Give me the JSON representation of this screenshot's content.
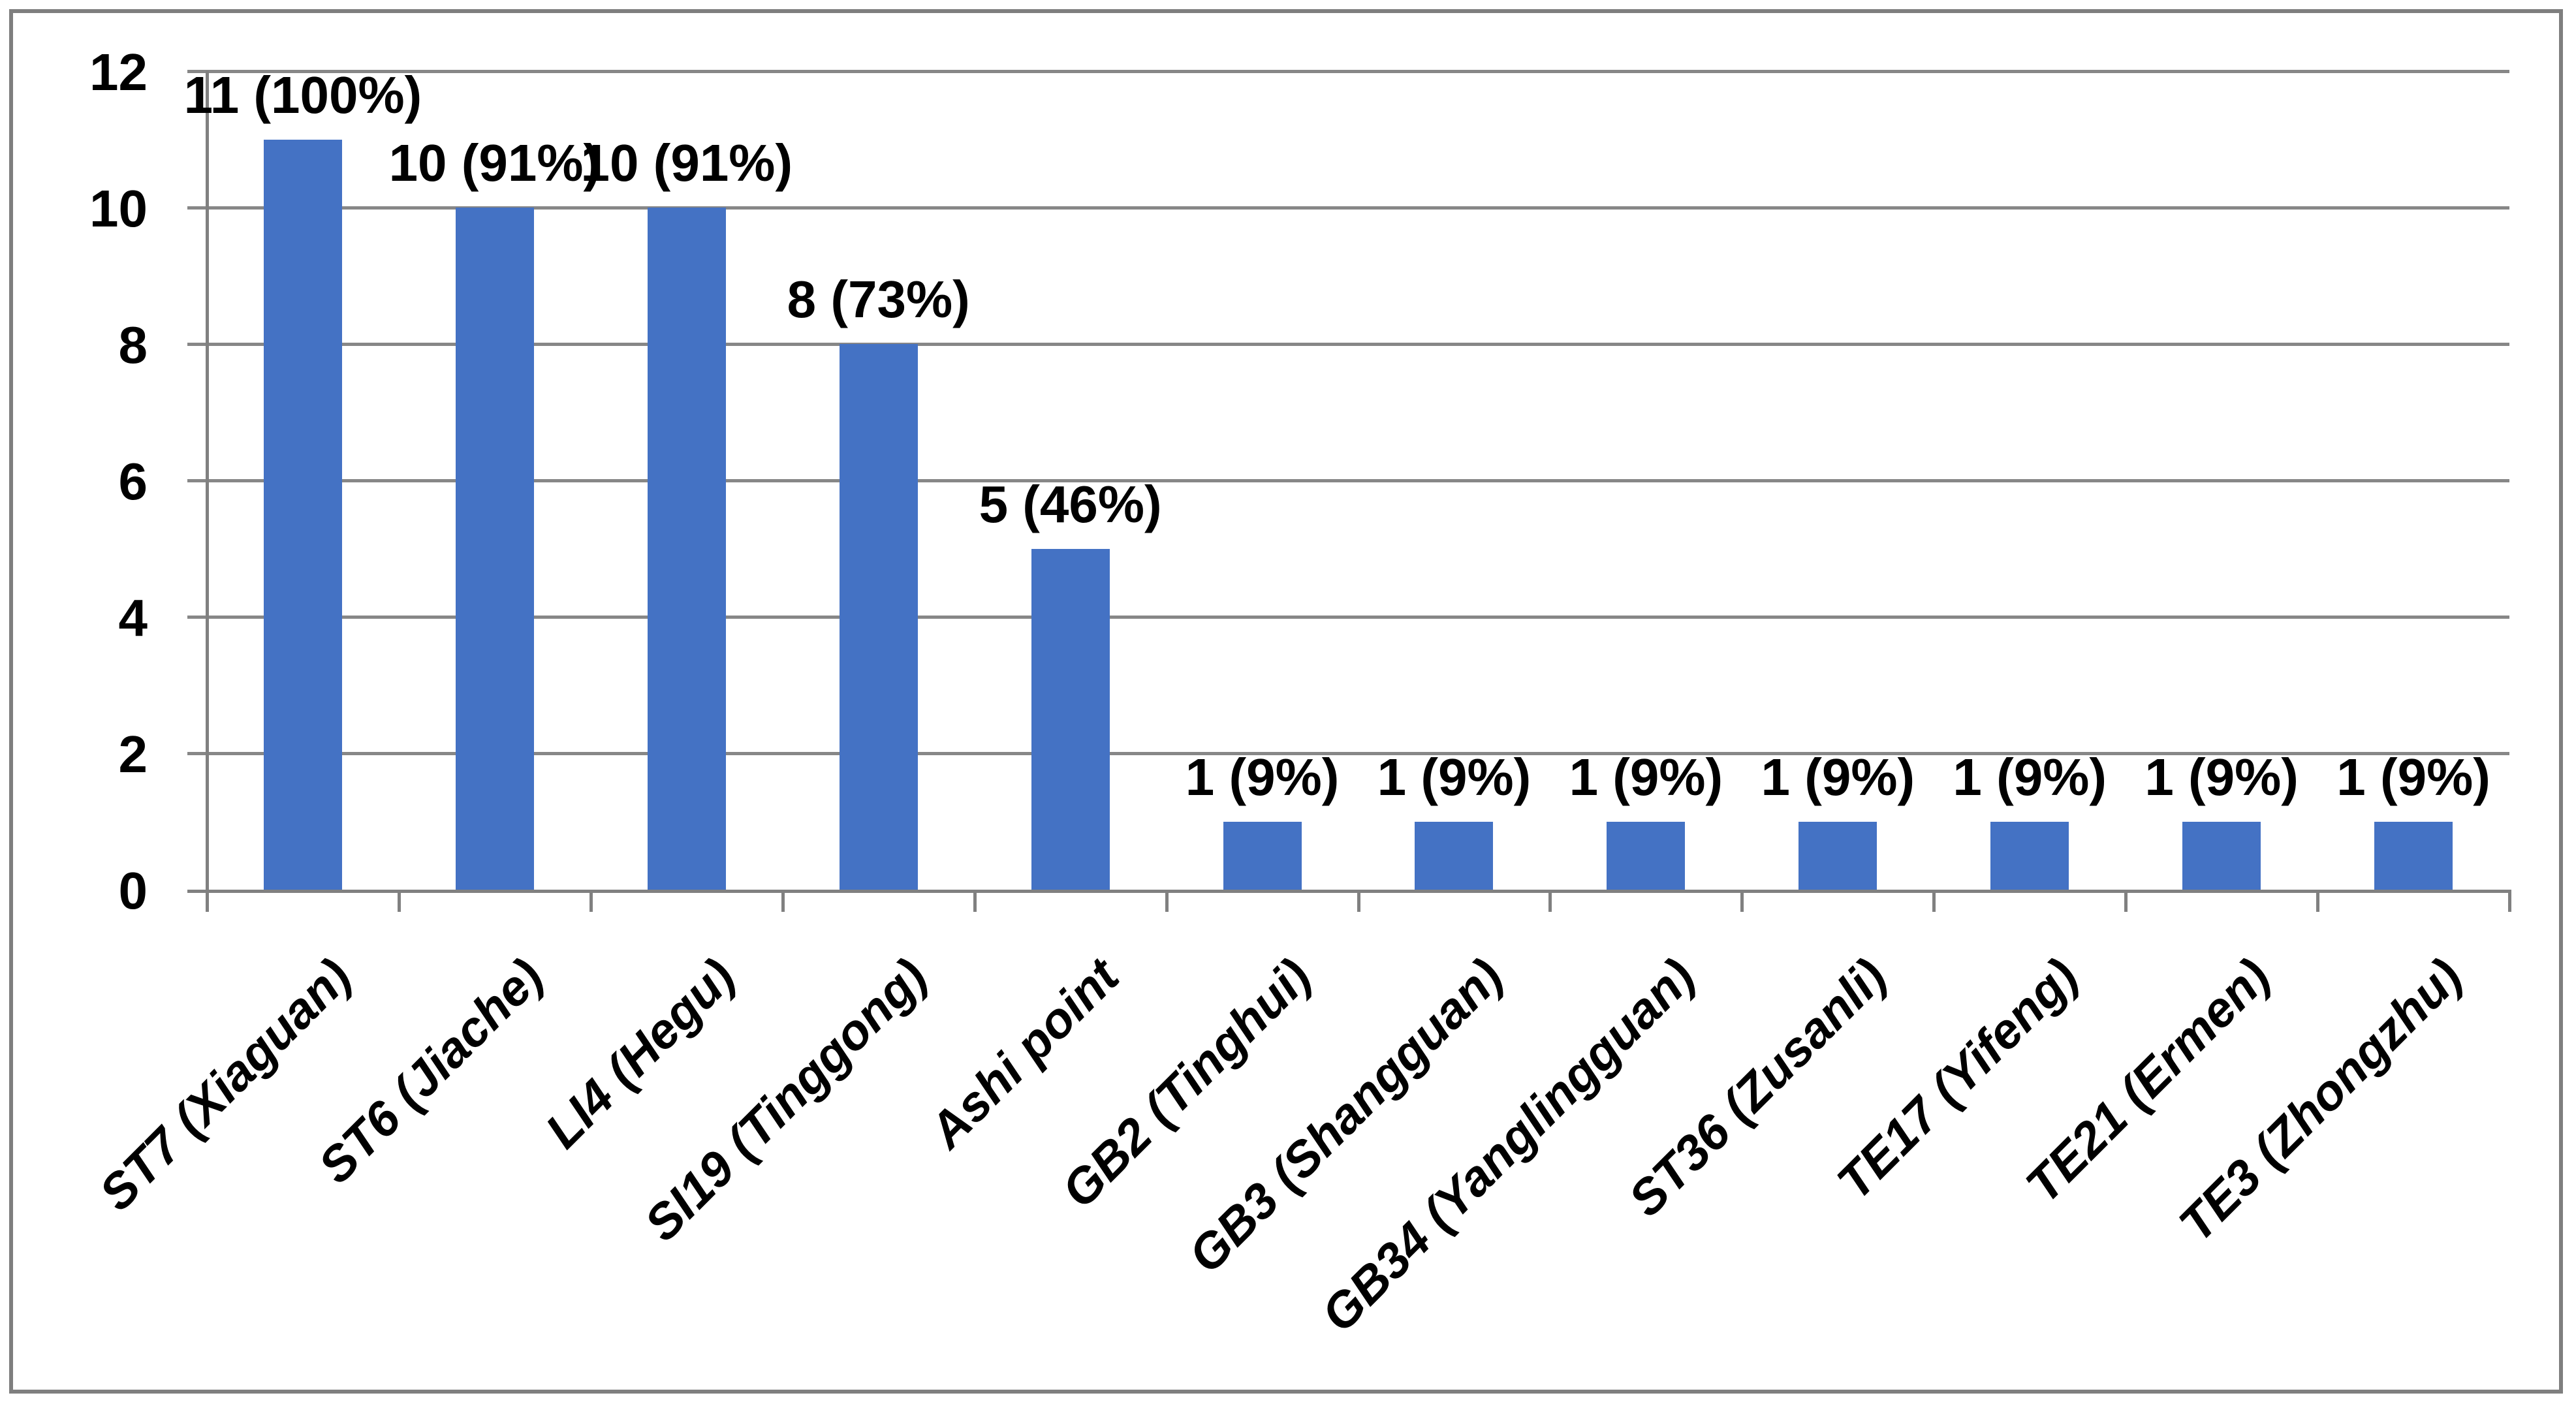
{
  "chart_data": {
    "type": "bar",
    "title": "",
    "xlabel": "",
    "ylabel": "",
    "categories": [
      "ST7 (Xiaguan)",
      "ST6 (Jiache)",
      "LI4 (Hegu)",
      "SI19 (Tinggong)",
      "Ashi point",
      "GB2 (Tinghui)",
      "GB3 (Shangguan)",
      "GB34 (Yanglingguan)",
      "ST36 (Zusanli)",
      "TE17 (Yifeng)",
      "TE21 (Ermen)",
      "TE3 (Zhongzhu)"
    ],
    "values": [
      11,
      10,
      10,
      8,
      5,
      1,
      1,
      1,
      1,
      1,
      1,
      1
    ],
    "data_labels": [
      "11 (100%)",
      "10 (91%)",
      "10 (91%)",
      "8 (73%)",
      "5 (46%)",
      "1 (9%)",
      "1 (9%)",
      "1 (9%)",
      "1 (9%)",
      "1 (9%)",
      "1 (9%)",
      "1 (9%)"
    ],
    "y_ticks": [
      "0",
      "2",
      "4",
      "6",
      "8",
      "10",
      "12"
    ],
    "y_tick_values": [
      0,
      2,
      4,
      6,
      8,
      10,
      12
    ],
    "ylim": [
      0,
      12
    ],
    "grid": true,
    "legend": false,
    "bar_color": "#4472C4",
    "gridline_color": "#878787",
    "axis_color": "#808080",
    "border_color": "#7F7F7F",
    "text_color": "#000000",
    "background": "#FFFFFF"
  }
}
